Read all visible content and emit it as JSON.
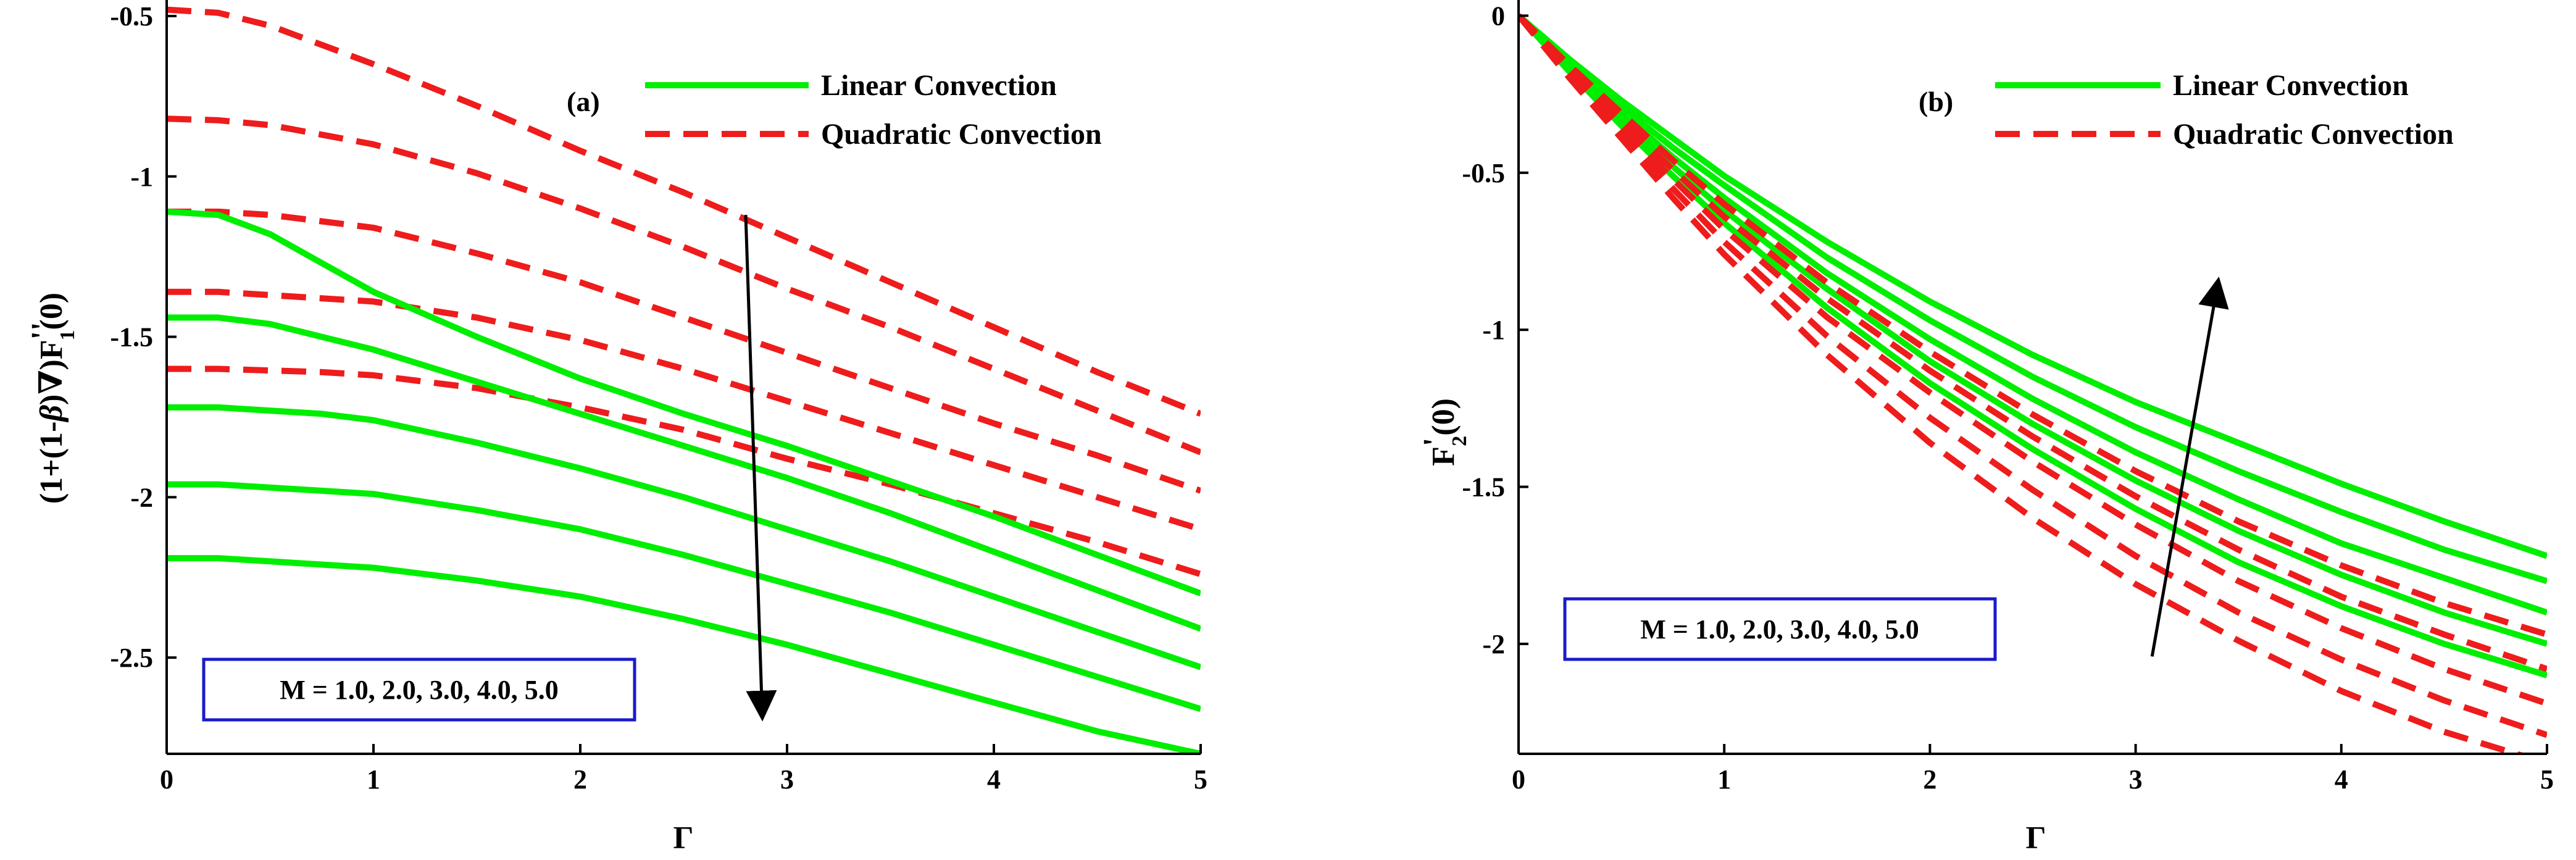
{
  "chart_data": [
    {
      "type": "line",
      "panel_label": "(a)",
      "xlabel": "Γ",
      "ylabel": "(1+(1-β)∇)F₁''(0)",
      "ylabel_parts": {
        "prefix": "(1+(1-",
        "beta": "β",
        "mid": ")∇)F",
        "prime": "''",
        "sub": "1",
        "suffix": "(0)"
      },
      "xlim": [
        0,
        5
      ],
      "ylim": [
        -2.8,
        -0.45
      ],
      "xticks": [
        0,
        1,
        2,
        3,
        4,
        5
      ],
      "yticks": [
        -0.5,
        -1,
        -1.5,
        -2,
        -2.5
      ],
      "xtick_labels": [
        "0",
        "1",
        "2",
        "3",
        "4",
        "5"
      ],
      "ytick_labels": [
        "-0.5",
        "-1",
        "-1.5",
        "-2",
        "-2.5"
      ],
      "legend": {
        "position": "top-right",
        "entries": [
          "Linear Convection",
          "Quadratic Convection"
        ]
      },
      "annotation": {
        "text": "M = 1.0, 2.0, 3.0, 4.0, 5.0",
        "position": "bottom-left"
      },
      "arrow": {
        "from": [
          2.8,
          -1.12
        ],
        "to": [
          2.88,
          -2.68
        ]
      },
      "x": [
        0,
        0.25,
        0.5,
        0.75,
        1,
        1.5,
        2,
        2.5,
        3,
        3.5,
        4,
        4.5,
        5
      ],
      "series": [
        {
          "name": "Quadratic Convection M=1.0",
          "style": "dashed",
          "values": [
            -0.48,
            -0.49,
            -0.53,
            -0.59,
            -0.65,
            -0.78,
            -0.92,
            -1.05,
            -1.19,
            -1.33,
            -1.47,
            -1.61,
            -1.74
          ]
        },
        {
          "name": "Quadratic Convection M=2.0",
          "style": "dashed",
          "values": [
            -0.82,
            -0.825,
            -0.84,
            -0.87,
            -0.9,
            -0.99,
            -1.1,
            -1.22,
            -1.35,
            -1.47,
            -1.6,
            -1.73,
            -1.86
          ]
        },
        {
          "name": "Quadratic Convection M=3.0",
          "style": "dashed",
          "values": [
            -1.11,
            -1.11,
            -1.12,
            -1.14,
            -1.16,
            -1.24,
            -1.33,
            -1.44,
            -1.55,
            -1.66,
            -1.77,
            -1.87,
            -1.98
          ]
        },
        {
          "name": "Quadratic Convection M=4.0",
          "style": "dashed",
          "values": [
            -1.36,
            -1.36,
            -1.37,
            -1.38,
            -1.39,
            -1.44,
            -1.51,
            -1.6,
            -1.7,
            -1.8,
            -1.9,
            -2.0,
            -2.1
          ]
        },
        {
          "name": "Quadratic Convection M=5.0",
          "style": "dashed",
          "values": [
            -1.6,
            -1.6,
            -1.605,
            -1.61,
            -1.62,
            -1.66,
            -1.72,
            -1.79,
            -1.88,
            -1.96,
            -2.05,
            -2.14,
            -2.24
          ]
        },
        {
          "name": "Linear Convection M=1.0",
          "style": "solid",
          "values": [
            -1.11,
            -1.12,
            -1.18,
            -1.27,
            -1.36,
            -1.5,
            -1.63,
            -1.74,
            -1.84,
            -1.95,
            -2.06,
            -2.18,
            -2.3
          ]
        },
        {
          "name": "Linear Convection M=2.0",
          "style": "solid",
          "values": [
            -1.44,
            -1.44,
            -1.46,
            -1.5,
            -1.54,
            -1.64,
            -1.74,
            -1.84,
            -1.94,
            -2.05,
            -2.17,
            -2.29,
            -2.41
          ]
        },
        {
          "name": "Linear Convection M=3.0",
          "style": "solid",
          "values": [
            -1.72,
            -1.72,
            -1.73,
            -1.74,
            -1.76,
            -1.83,
            -1.91,
            -2.0,
            -2.1,
            -2.2,
            -2.31,
            -2.42,
            -2.53
          ]
        },
        {
          "name": "Linear Convection M=4.0",
          "style": "solid",
          "values": [
            -1.96,
            -1.96,
            -1.97,
            -1.98,
            -1.99,
            -2.04,
            -2.1,
            -2.18,
            -2.27,
            -2.36,
            -2.46,
            -2.56,
            -2.66
          ]
        },
        {
          "name": "Linear Convection M=5.0",
          "style": "solid",
          "values": [
            -2.19,
            -2.19,
            -2.2,
            -2.21,
            -2.22,
            -2.26,
            -2.31,
            -2.38,
            -2.46,
            -2.55,
            -2.64,
            -2.73,
            -2.8
          ]
        }
      ]
    },
    {
      "type": "line",
      "panel_label": "(b)",
      "xlabel": "Γ",
      "ylabel": "F₂'(0)",
      "ylabel_parts": {
        "prefix": "F",
        "prime": "'",
        "sub": "2",
        "suffix": "(0)"
      },
      "xlim": [
        0,
        5
      ],
      "ylim": [
        -2.35,
        0.05
      ],
      "xticks": [
        0,
        1,
        2,
        3,
        4,
        5
      ],
      "yticks": [
        0,
        -0.5,
        -1,
        -1.5,
        -2
      ],
      "xtick_labels": [
        "0",
        "1",
        "2",
        "3",
        "4",
        "5"
      ],
      "ytick_labels": [
        "0",
        "-0.5",
        "-1",
        "-1.5",
        "-2"
      ],
      "legend": {
        "position": "top-right",
        "entries": [
          "Linear Convection",
          "Quadratic Convection"
        ]
      },
      "annotation": {
        "text": "M = 1.0, 2.0, 3.0, 4.0, 5.0",
        "position": "bottom-left"
      },
      "arrow": {
        "from": [
          3.08,
          -2.04
        ],
        "to": [
          3.4,
          -0.85
        ]
      },
      "x": [
        0,
        0.25,
        0.5,
        0.75,
        1,
        1.5,
        2,
        2.5,
        3,
        3.5,
        4,
        4.5,
        5
      ],
      "series": [
        {
          "name": "Linear Convection M=1.0",
          "style": "solid",
          "values": [
            0,
            -0.14,
            -0.27,
            -0.39,
            -0.51,
            -0.72,
            -0.91,
            -1.08,
            -1.23,
            -1.36,
            -1.49,
            -1.61,
            -1.72
          ]
        },
        {
          "name": "Linear Convection M=2.0",
          "style": "solid",
          "values": [
            0,
            -0.15,
            -0.29,
            -0.42,
            -0.54,
            -0.77,
            -0.97,
            -1.15,
            -1.31,
            -1.45,
            -1.58,
            -1.7,
            -1.8
          ]
        },
        {
          "name": "Linear Convection M=3.0",
          "style": "solid",
          "values": [
            0,
            -0.16,
            -0.31,
            -0.45,
            -0.58,
            -0.82,
            -1.03,
            -1.22,
            -1.39,
            -1.54,
            -1.68,
            -1.79,
            -1.9
          ]
        },
        {
          "name": "Linear Convection M=4.0",
          "style": "solid",
          "values": [
            0,
            -0.17,
            -0.33,
            -0.48,
            -0.62,
            -0.87,
            -1.1,
            -1.3,
            -1.48,
            -1.64,
            -1.78,
            -1.9,
            -2.0
          ]
        },
        {
          "name": "Linear Convection M=5.0",
          "style": "solid",
          "values": [
            0,
            -0.18,
            -0.35,
            -0.51,
            -0.66,
            -0.93,
            -1.17,
            -1.38,
            -1.57,
            -1.74,
            -1.88,
            -2.0,
            -2.1
          ]
        },
        {
          "name": "Quadratic Convection M=1.0",
          "style": "dashed",
          "values": [
            0,
            -0.16,
            -0.31,
            -0.46,
            -0.6,
            -0.85,
            -1.07,
            -1.27,
            -1.45,
            -1.61,
            -1.75,
            -1.87,
            -1.97
          ]
        },
        {
          "name": "Quadratic Convection M=2.0",
          "style": "dashed",
          "values": [
            0,
            -0.17,
            -0.33,
            -0.49,
            -0.64,
            -0.9,
            -1.13,
            -1.34,
            -1.53,
            -1.7,
            -1.85,
            -1.97,
            -2.08
          ]
        },
        {
          "name": "Quadratic Convection M=3.0",
          "style": "dashed",
          "values": [
            0,
            -0.18,
            -0.35,
            -0.52,
            -0.68,
            -0.96,
            -1.2,
            -1.42,
            -1.62,
            -1.8,
            -1.95,
            -2.08,
            -2.19
          ]
        },
        {
          "name": "Quadratic Convection M=4.0",
          "style": "dashed",
          "values": [
            0,
            -0.19,
            -0.37,
            -0.55,
            -0.72,
            -1.02,
            -1.28,
            -1.51,
            -1.72,
            -1.9,
            -2.05,
            -2.18,
            -2.29
          ]
        },
        {
          "name": "Quadratic Convection M=5.0",
          "style": "dashed",
          "values": [
            0,
            -0.2,
            -0.39,
            -0.58,
            -0.76,
            -1.08,
            -1.36,
            -1.6,
            -1.81,
            -1.99,
            -2.15,
            -2.28,
            -2.38
          ]
        }
      ]
    }
  ],
  "colors": {
    "linear": "#00ee00",
    "quadratic": "#ee1c1c",
    "annotation_border": "#1a1acc",
    "axis": "#000000",
    "arrow": "#000000"
  }
}
